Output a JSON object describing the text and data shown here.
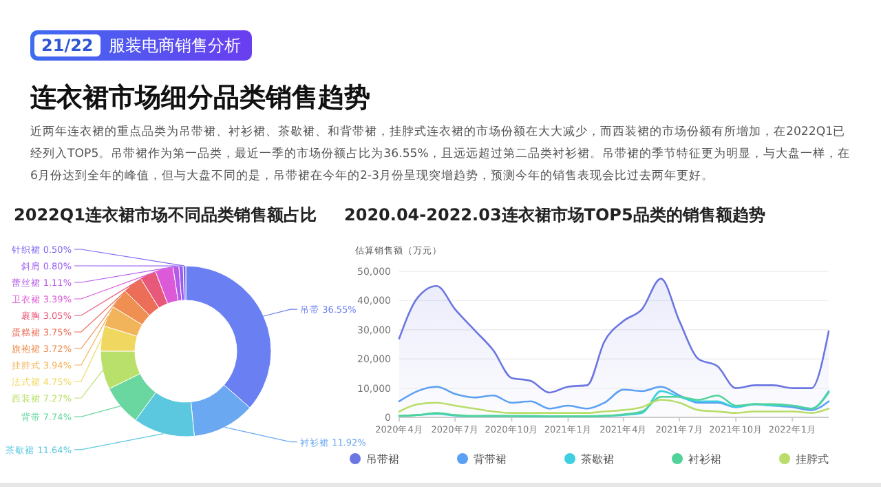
{
  "chart_data": [
    {
      "type": "other",
      "title": "连衣裙市场细分品类销售趋势",
      "annotations": [
        "21/22",
        "服装电商销售分析",
        "近两年连衣裙的重点品类为吊带裙、衬衫裙、茶歇裙、和背带裙，挂脖式连衣裙的市场份额在大大减少，而西装裙的市场份额有所增加，在2022Q1已经列入TOP5。吊带裙作为第一品类，最近一季的市场份额占比为36.55%，且远远超过第二品类衬衫裙。吊带裙的季节特征更为明显，与大盘一样，在6月份达到全年的峰值，但与大盘不同的是，吊带裙在今年的2-3月份呈现突增趋势，预测今年的销售表现会比过去两年更好。"
      ]
    },
    {
      "type": "donut",
      "title": "2022Q1连衣裙市场不同品类销售额占比",
      "categories": [
        "吊带",
        "衬衫裙",
        "茶歇裙",
        "背带",
        "西装裙",
        "法式裙",
        "挂脖式",
        "旗袍裙",
        "蛋糕裙",
        "裹胸",
        "卫衣裙",
        "蕾丝裙",
        "斜肩",
        "针织裙"
      ],
      "values": [
        36.55,
        11.92,
        11.64,
        7.74,
        7.27,
        4.75,
        3.94,
        3.72,
        3.75,
        3.05,
        3.39,
        1.11,
        0.8,
        0.5
      ],
      "value_labels": [
        "36.55%",
        "11.92%",
        "11.64%",
        "7.74%",
        "7.27%",
        "4.75%",
        "3.94%",
        "3.72%",
        "3.75%",
        "3.05%",
        "3.39%",
        "1.11%",
        "0.80%",
        "0.50%"
      ],
      "colors": [
        "#6a7ff2",
        "#6aa8f2",
        "#5cc8e0",
        "#6ad6a0",
        "#b9e06a",
        "#f0d860",
        "#f2b45a",
        "#ef8f52",
        "#ec6d58",
        "#e8587a",
        "#dc5ad8",
        "#b45ae8",
        "#9a5cf0",
        "#7a66f0"
      ]
    },
    {
      "type": "line",
      "title": "2020.04-2022.03连衣裙市场TOP5品类的销售额趋势",
      "ylabel": "估算销售额（万元）",
      "x": [
        "2020-04",
        "2020-05",
        "2020-06",
        "2020-07",
        "2020-08",
        "2020-09",
        "2020-10",
        "2020-11",
        "2020-12",
        "2021-01",
        "2021-02",
        "2021-03",
        "2021-04",
        "2021-05",
        "2021-06",
        "2021-07",
        "2021-08",
        "2021-09",
        "2021-10",
        "2021-11",
        "2021-12",
        "2022-01",
        "2022-02",
        "2022-03"
      ],
      "xlim": [
        "2020-04",
        "2022-03"
      ],
      "xticks": [
        {
          "value": "2020-04",
          "label": "2020年4月"
        },
        {
          "value": "2020-07",
          "label": "2020年7月"
        },
        {
          "value": "2020-10",
          "label": "2020年10月"
        },
        {
          "value": "2021-01",
          "label": "2021年1月"
        },
        {
          "value": "2021-04",
          "label": "2021年4月"
        },
        {
          "value": "2021-07",
          "label": "2021年7月"
        },
        {
          "value": "2021-10",
          "label": "2021年10月"
        },
        {
          "value": "2022-01",
          "label": "2022年1月"
        }
      ],
      "ylim": [
        0,
        50000
      ],
      "yticks": [
        {
          "value": 0,
          "label": "0"
        },
        {
          "value": 10000,
          "label": "10,000"
        },
        {
          "value": 20000,
          "label": "20,000"
        },
        {
          "value": 30000,
          "label": "30,000"
        },
        {
          "value": 40000,
          "label": "40,000"
        },
        {
          "value": 50000,
          "label": "50,000"
        }
      ],
      "grid": "y",
      "legend": "bottom",
      "marker": "none",
      "line_style": "solid",
      "series": [
        {
          "name": "吊带裙",
          "type": "area",
          "color": "#6b76e0",
          "values": [
            27000,
            41000,
            45000,
            37000,
            30000,
            23000,
            13500,
            12500,
            8500,
            10500,
            11000,
            26000,
            33000,
            37000,
            47500,
            33000,
            20000,
            17500,
            10000,
            11000,
            11000,
            10000,
            10000,
            29500
          ]
        },
        {
          "name": "背带裙",
          "color": "#5ba0f2",
          "values": [
            5500,
            9000,
            10500,
            8000,
            6800,
            7500,
            5000,
            5500,
            3000,
            4000,
            3000,
            5000,
            9500,
            9000,
            10500,
            7500,
            5000,
            5000,
            3500,
            4500,
            4000,
            3500,
            2500,
            5500
          ]
        },
        {
          "name": "茶歇裙",
          "color": "#3fcfe0",
          "values": [
            500,
            800,
            1200,
            600,
            400,
            500,
            400,
            300,
            300,
            300,
            300,
            500,
            800,
            1500,
            9000,
            7000,
            5500,
            5500,
            3500,
            4500,
            4000,
            4000,
            3000,
            9000
          ]
        },
        {
          "name": "衬衫裙",
          "color": "#4fd39a",
          "values": [
            500,
            800,
            1500,
            800,
            500,
            500,
            500,
            500,
            400,
            400,
            400,
            500,
            1000,
            2000,
            7000,
            7000,
            6000,
            7500,
            4000,
            4500,
            4500,
            4000,
            3000,
            8500
          ]
        },
        {
          "name": "挂脖式",
          "color": "#b8dd6a",
          "values": [
            2000,
            4500,
            5000,
            4000,
            3000,
            2000,
            1500,
            1500,
            1500,
            1500,
            1500,
            2000,
            2500,
            3500,
            6000,
            5000,
            2500,
            2000,
            1500,
            2000,
            2000,
            2000,
            1500,
            3000
          ]
        }
      ]
    }
  ]
}
